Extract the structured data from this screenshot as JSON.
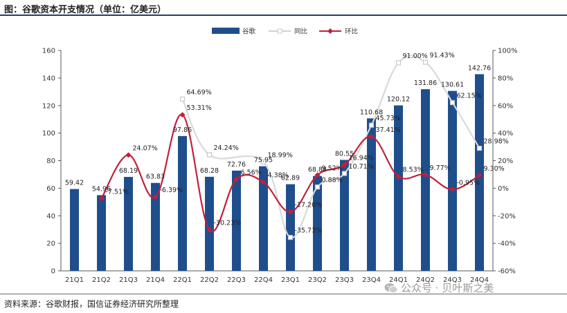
{
  "page": {
    "title": "图：谷歌资本开支情况（单位：亿美元）",
    "source": "资料来源：谷歌财报，国信证券经济研究所整理",
    "watermark_text": "公众号 · 贝叶斯之美",
    "watermark_icon": "wechat-icon"
  },
  "chart_data": {
    "type": "bar",
    "categories": [
      "21Q1",
      "21Q2",
      "21Q3",
      "21Q4",
      "22Q1",
      "22Q2",
      "22Q3",
      "22Q4",
      "23Q1",
      "23Q2",
      "23Q3",
      "23Q4",
      "24Q1",
      "24Q2",
      "24Q3",
      "24Q4"
    ],
    "series": [
      {
        "name": "谷歌",
        "type": "bar",
        "axis": "left",
        "color": "#1f4e8c",
        "values": [
          59.42,
          54.96,
          68.19,
          63.83,
          97.86,
          68.28,
          72.76,
          75.95,
          62.89,
          68.88,
          80.55,
          110.68,
          120.12,
          131.86,
          130.61,
          142.76
        ],
        "labels": [
          "59.42",
          "54.96",
          "68.19",
          "63.83",
          "97.86",
          "68.28",
          "72.76",
          "75.95",
          "62.89",
          "68.88",
          "80.55",
          "110.68",
          "120.12",
          "131.86",
          "130.61",
          "142.76"
        ]
      },
      {
        "name": "同比",
        "type": "line",
        "axis": "right",
        "color": "#d9d9d9",
        "values": [
          null,
          null,
          null,
          null,
          64.69,
          24.24,
          null,
          18.99,
          -35.73,
          0.88,
          10.71,
          45.73,
          91.0,
          91.43,
          62.15,
          28.98
        ],
        "labels": [
          "",
          "",
          "",
          "",
          "64.69%",
          "24.24%",
          "",
          "18.99%",
          "-35.73%",
          "0.88%",
          "10.71%",
          "45.73%",
          "91.00%",
          "91.43%",
          "62.15%",
          "28.98%"
        ]
      },
      {
        "name": "环比",
        "type": "line",
        "axis": "right",
        "color": "#c0203a",
        "values": [
          null,
          -7.51,
          24.07,
          -6.39,
          53.31,
          -30.23,
          6.56,
          4.38,
          -17.2,
          9.52,
          16.94,
          37.41,
          8.53,
          9.77,
          -0.95,
          9.3
        ],
        "labels": [
          "",
          "-7.51%",
          "24.07%",
          "-6.39%",
          "53.31%",
          "-30.23%",
          "6.56%",
          "4.38%",
          "-17.20%",
          "9.52%",
          "16.94%",
          "37.41%",
          "8.53%",
          "9.77%",
          "-0.95%",
          "9.30%"
        ]
      }
    ],
    "y_left": {
      "min": 0,
      "max": 160,
      "step": 20,
      "ticks": [
        "0",
        "20",
        "40",
        "60",
        "80",
        "100",
        "120",
        "140",
        "160"
      ]
    },
    "y_right": {
      "min": -60,
      "max": 100,
      "step": 20,
      "ticks": [
        "-60%",
        "-40%",
        "-20%",
        "0%",
        "20%",
        "40%",
        "60%",
        "80%",
        "100%"
      ]
    },
    "legend_position": "top-center",
    "grid": false
  }
}
